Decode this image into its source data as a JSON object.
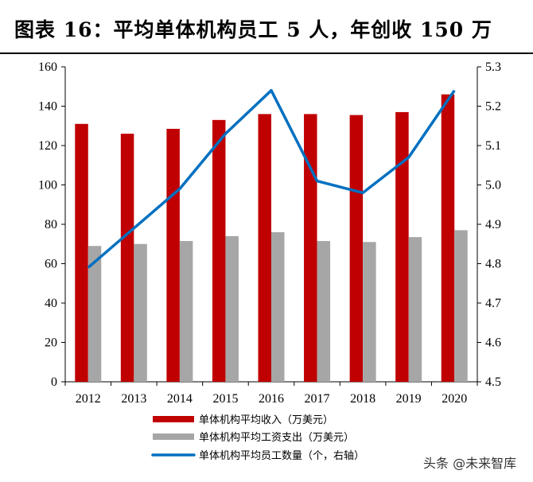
{
  "title": "图表 16：平均单体机构员工 5 人，年创收 150 万",
  "watermark": "头条 @未来智库",
  "chart_data": {
    "type": "bar",
    "categories": [
      "2012",
      "2013",
      "2014",
      "2015",
      "2016",
      "2017",
      "2018",
      "2019",
      "2020"
    ],
    "series": [
      {
        "name": "单体机构平均收入（万美元）",
        "type": "bar",
        "axis": "left",
        "color": "#C00000",
        "values": [
          131,
          126,
          128.5,
          133,
          136,
          136,
          135.5,
          137,
          146
        ]
      },
      {
        "name": "单体机构平均工资支出（万美元）",
        "type": "bar",
        "axis": "left",
        "color": "#A6A6A6",
        "values": [
          69,
          70,
          71.5,
          74,
          76,
          71.5,
          71,
          73.5,
          77
        ]
      },
      {
        "name": "单体机构平均员工数量（个，右轴）",
        "type": "line",
        "axis": "right",
        "color": "#0070C0",
        "values": [
          4.79,
          4.89,
          4.99,
          5.13,
          5.24,
          5.01,
          4.98,
          5.07,
          5.24
        ]
      }
    ],
    "ylim": [
      0,
      160
    ],
    "yticks": [
      "0",
      "20",
      "40",
      "60",
      "80",
      "100",
      "120",
      "140",
      "160"
    ],
    "y2lim": [
      4.5,
      5.3
    ],
    "y2ticks": [
      "4.5",
      "4.6",
      "4.7",
      "4.8",
      "4.9",
      "5.0",
      "5.1",
      "5.2",
      "5.3"
    ],
    "legend_position": "bottom",
    "grid": false
  }
}
